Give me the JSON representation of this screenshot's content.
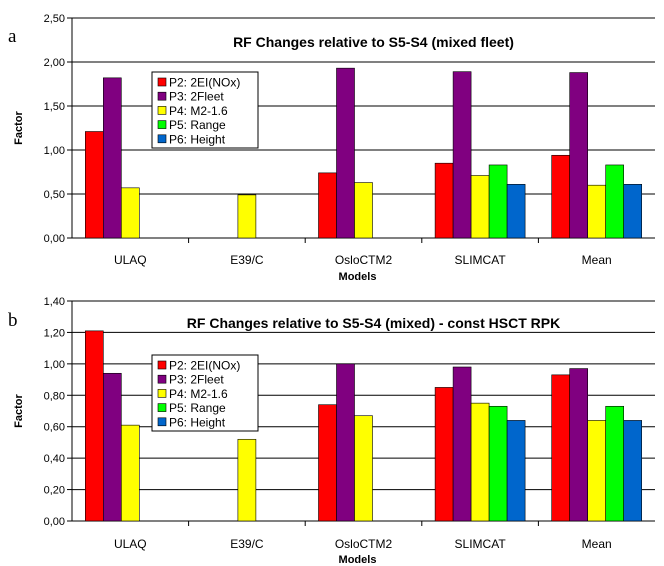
{
  "chart_data": [
    {
      "type": "bar",
      "panel_label": "a",
      "title": "RF Changes relative to S5-S4 (mixed fleet)",
      "xlabel": "Models",
      "ylabel": "Factor",
      "ylim": [
        0,
        2.5
      ],
      "yticks": [
        "0,00",
        "0,50",
        "1,00",
        "1,50",
        "2,00",
        "2,50"
      ],
      "grid": true,
      "legend_position": "upper-left",
      "categories": [
        "ULAQ",
        "E39/C",
        "OsloCTM2",
        "SLIMCAT",
        "Mean"
      ],
      "series": [
        {
          "name": "P2: 2EI(NOx)",
          "color": "#ff0000",
          "values": [
            1.21,
            null,
            0.74,
            0.85,
            0.94
          ]
        },
        {
          "name": "P3: 2Fleet",
          "color": "#800080",
          "values": [
            1.82,
            null,
            1.93,
            1.89,
            1.88
          ]
        },
        {
          "name": "P4: M2-1.6",
          "color": "#ffff00",
          "values": [
            0.57,
            0.49,
            0.63,
            0.71,
            0.6
          ]
        },
        {
          "name": "P5: Range",
          "color": "#00ff00",
          "values": [
            null,
            null,
            null,
            0.83,
            0.83
          ]
        },
        {
          "name": "P6: Height",
          "color": "#0066cc",
          "values": [
            null,
            null,
            null,
            0.61,
            0.61
          ]
        }
      ]
    },
    {
      "type": "bar",
      "panel_label": "b",
      "title": "RF Changes relative to S5-S4 (mixed) - const HSCT RPK",
      "xlabel": "Models",
      "ylabel": "Factor",
      "ylim": [
        0,
        1.4
      ],
      "yticks": [
        "0,00",
        "0,20",
        "0,40",
        "0,60",
        "0,80",
        "1,00",
        "1,20",
        "1,40"
      ],
      "grid": true,
      "legend_position": "upper-left",
      "categories": [
        "ULAQ",
        "E39/C",
        "OsloCTM2",
        "SLIMCAT",
        "Mean"
      ],
      "series": [
        {
          "name": "P2: 2EI(NOx)",
          "color": "#ff0000",
          "values": [
            1.21,
            null,
            0.74,
            0.85,
            0.93
          ]
        },
        {
          "name": "P3: 2Fleet",
          "color": "#800080",
          "values": [
            0.94,
            null,
            1.0,
            0.98,
            0.97
          ]
        },
        {
          "name": "P4: M2-1.6",
          "color": "#ffff00",
          "values": [
            0.61,
            0.52,
            0.67,
            0.75,
            0.64
          ]
        },
        {
          "name": "P5: Range",
          "color": "#00ff00",
          "values": [
            null,
            null,
            null,
            0.73,
            0.73
          ]
        },
        {
          "name": "P6: Height",
          "color": "#0066cc",
          "values": [
            null,
            null,
            null,
            0.64,
            0.64
          ]
        }
      ]
    }
  ]
}
